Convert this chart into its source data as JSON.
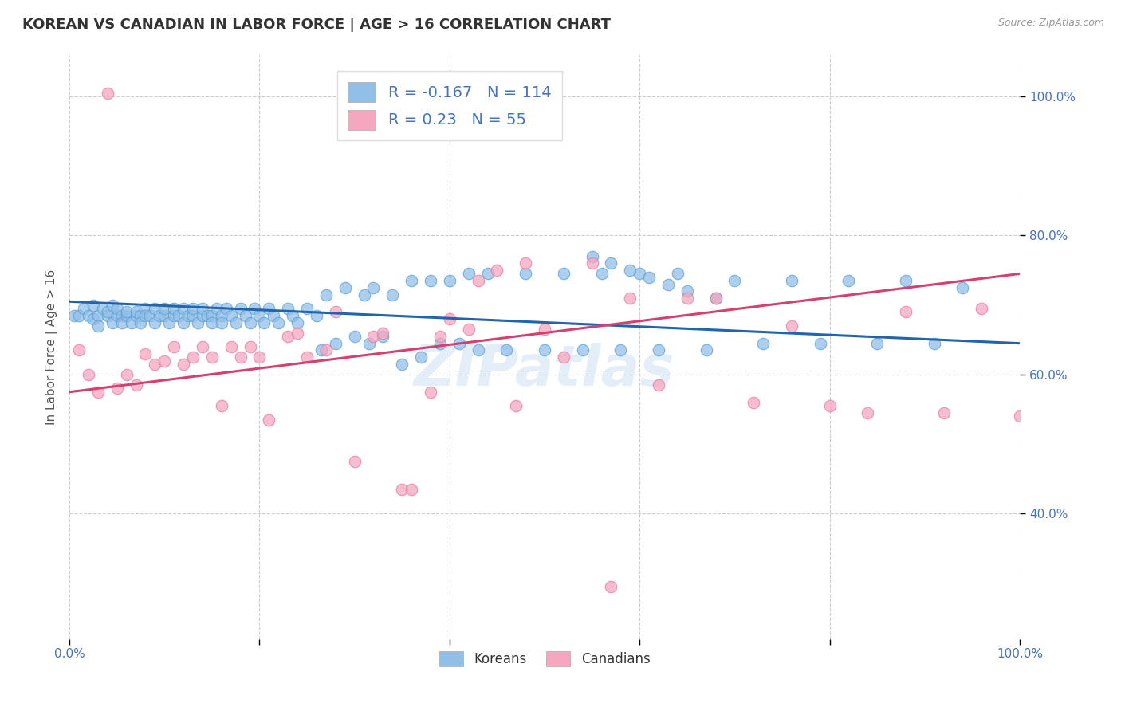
{
  "title": "KOREAN VS CANADIAN IN LABOR FORCE | AGE > 16 CORRELATION CHART",
  "source": "Source: ZipAtlas.com",
  "ylabel": "In Labor Force | Age > 16",
  "watermark": "ZIPatlas",
  "korean_R": -0.167,
  "korean_N": 114,
  "canadian_R": 0.23,
  "canadian_N": 55,
  "xlim": [
    0.0,
    1.0
  ],
  "ylim": [
    0.22,
    1.06
  ],
  "xticks": [
    0.0,
    0.2,
    0.4,
    0.6,
    0.8,
    1.0
  ],
  "xticklabels": [
    "0.0%",
    "",
    "",
    "",
    "",
    "100.0%"
  ],
  "yticks_right": [
    0.4,
    0.6,
    0.8,
    1.0
  ],
  "ytick_labels_right": [
    "40.0%",
    "60.0%",
    "80.0%",
    "100.0%"
  ],
  "blue_color": "#92bfe8",
  "pink_color": "#f4a7be",
  "blue_line_color": "#2166ac",
  "pink_line_color": "#d6406e",
  "blue_edge": "#5a9fd4",
  "pink_edge": "#e878a0",
  "background_color": "#ffffff",
  "grid_color": "#cccccc",
  "title_color": "#333333",
  "tick_color": "#4472c4",
  "ylabel_color": "#555555",
  "title_fontsize": 13,
  "axis_label_fontsize": 11,
  "tick_fontsize": 11,
  "legend_fontsize": 14,
  "korean_line_start": 0.705,
  "korean_line_end": 0.645,
  "canadian_line_start": 0.575,
  "canadian_line_end": 0.745,
  "korean_x": [
    0.005,
    0.01,
    0.015,
    0.02,
    0.025,
    0.025,
    0.03,
    0.03,
    0.035,
    0.04,
    0.04,
    0.045,
    0.045,
    0.05,
    0.05,
    0.055,
    0.055,
    0.06,
    0.06,
    0.065,
    0.07,
    0.07,
    0.075,
    0.075,
    0.08,
    0.08,
    0.085,
    0.09,
    0.09,
    0.095,
    0.1,
    0.1,
    0.105,
    0.11,
    0.11,
    0.115,
    0.12,
    0.12,
    0.125,
    0.13,
    0.13,
    0.135,
    0.14,
    0.14,
    0.145,
    0.15,
    0.15,
    0.155,
    0.16,
    0.16,
    0.165,
    0.17,
    0.175,
    0.18,
    0.185,
    0.19,
    0.195,
    0.2,
    0.205,
    0.21,
    0.215,
    0.22,
    0.23,
    0.235,
    0.24,
    0.25,
    0.26,
    0.265,
    0.27,
    0.28,
    0.29,
    0.3,
    0.31,
    0.315,
    0.32,
    0.33,
    0.34,
    0.35,
    0.36,
    0.37,
    0.38,
    0.39,
    0.4,
    0.41,
    0.42,
    0.43,
    0.44,
    0.46,
    0.48,
    0.5,
    0.52,
    0.54,
    0.56,
    0.58,
    0.6,
    0.62,
    0.64,
    0.67,
    0.7,
    0.73,
    0.76,
    0.79,
    0.82,
    0.85,
    0.88,
    0.91,
    0.94,
    0.55,
    0.57,
    0.59,
    0.61,
    0.63,
    0.65,
    0.68
  ],
  "korean_y": [
    0.685,
    0.685,
    0.685,
    0.685,
    0.69,
    0.68,
    0.685,
    0.68,
    0.685,
    0.685,
    0.68,
    0.685,
    0.68,
    0.685,
    0.685,
    0.685,
    0.685,
    0.685,
    0.68,
    0.685,
    0.685,
    0.68,
    0.685,
    0.685,
    0.685,
    0.685,
    0.685,
    0.685,
    0.685,
    0.685,
    0.685,
    0.685,
    0.685,
    0.685,
    0.685,
    0.685,
    0.685,
    0.685,
    0.685,
    0.685,
    0.685,
    0.685,
    0.685,
    0.685,
    0.685,
    0.685,
    0.685,
    0.685,
    0.685,
    0.685,
    0.685,
    0.685,
    0.685,
    0.685,
    0.685,
    0.685,
    0.685,
    0.685,
    0.685,
    0.685,
    0.685,
    0.685,
    0.685,
    0.685,
    0.685,
    0.685,
    0.685,
    0.685,
    0.685,
    0.685,
    0.685,
    0.685,
    0.685,
    0.685,
    0.685,
    0.685,
    0.685,
    0.685,
    0.685,
    0.685,
    0.685,
    0.685,
    0.685,
    0.685,
    0.685,
    0.685,
    0.685,
    0.685,
    0.685,
    0.685,
    0.685,
    0.685,
    0.685,
    0.685,
    0.685,
    0.685,
    0.685,
    0.685,
    0.685,
    0.685,
    0.685,
    0.685,
    0.685,
    0.685,
    0.685,
    0.685,
    0.685,
    0.77,
    0.76,
    0.75,
    0.74,
    0.73,
    0.72,
    0.71
  ],
  "korean_y_spread": [
    0.0,
    0.0,
    0.01,
    0.0,
    -0.01,
    0.02,
    0.0,
    -0.01,
    0.01,
    0.0,
    0.01,
    -0.01,
    0.02,
    0.0,
    0.01,
    0.0,
    -0.01,
    0.0,
    0.01,
    -0.01,
    0.0,
    0.01,
    0.0,
    -0.01,
    0.01,
    0.0,
    0.0,
    -0.01,
    0.01,
    0.0,
    0.0,
    0.01,
    -0.01,
    0.0,
    0.01,
    0.0,
    -0.01,
    0.01,
    0.0,
    0.0,
    0.01,
    -0.01,
    0.0,
    0.01,
    0.0,
    0.0,
    -0.01,
    0.01,
    0.0,
    -0.01,
    0.01,
    0.0,
    -0.01,
    0.01,
    0.0,
    -0.01,
    0.01,
    0.0,
    -0.01,
    0.01,
    0.0,
    -0.01,
    0.01,
    0.0,
    -0.01,
    0.01,
    0.0,
    -0.05,
    0.03,
    -0.04,
    0.04,
    -0.03,
    0.03,
    -0.04,
    0.04,
    -0.03,
    0.03,
    -0.07,
    0.05,
    -0.06,
    0.05,
    -0.04,
    0.05,
    -0.04,
    0.06,
    -0.05,
    0.06,
    -0.05,
    0.06,
    -0.05,
    0.06,
    -0.05,
    0.06,
    -0.05,
    0.06,
    -0.05,
    0.06,
    -0.05,
    0.05,
    -0.04,
    0.05,
    -0.04,
    0.05,
    -0.04,
    0.05,
    -0.04,
    0.04,
    0.0,
    0.0,
    0.0,
    0.0,
    0.0,
    0.0,
    0.0
  ],
  "canadian_x": [
    0.01,
    0.02,
    0.03,
    0.05,
    0.06,
    0.07,
    0.08,
    0.09,
    0.1,
    0.11,
    0.12,
    0.13,
    0.14,
    0.15,
    0.16,
    0.17,
    0.18,
    0.19,
    0.2,
    0.21,
    0.23,
    0.24,
    0.25,
    0.27,
    0.28,
    0.3,
    0.32,
    0.33,
    0.35,
    0.36,
    0.38,
    0.39,
    0.4,
    0.42,
    0.43,
    0.45,
    0.47,
    0.48,
    0.5,
    0.52,
    0.55,
    0.57,
    0.59,
    0.62,
    0.65,
    0.68,
    0.72,
    0.76,
    0.8,
    0.84,
    0.88,
    0.92,
    0.96,
    1.0,
    0.04
  ],
  "canadian_y": [
    0.635,
    0.6,
    0.575,
    0.58,
    0.6,
    0.585,
    0.63,
    0.615,
    0.62,
    0.64,
    0.615,
    0.625,
    0.64,
    0.625,
    0.555,
    0.64,
    0.625,
    0.64,
    0.625,
    0.535,
    0.655,
    0.66,
    0.625,
    0.635,
    0.69,
    0.475,
    0.655,
    0.66,
    0.435,
    0.435,
    0.575,
    0.655,
    0.68,
    0.665,
    0.735,
    0.75,
    0.555,
    0.76,
    0.665,
    0.625,
    0.76,
    0.295,
    0.71,
    0.585,
    0.71,
    0.71,
    0.56,
    0.67,
    0.555,
    0.545,
    0.69,
    0.545,
    0.695,
    0.54,
    1.005
  ]
}
